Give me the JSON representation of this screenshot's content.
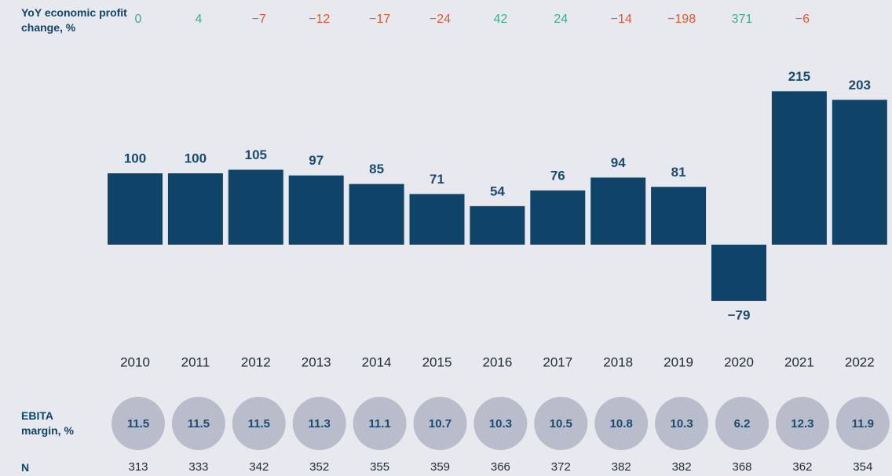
{
  "chart_data": {
    "type": "bar",
    "categories": [
      "2010",
      "2011",
      "2012",
      "2013",
      "2014",
      "2015",
      "2016",
      "2017",
      "2018",
      "2019",
      "2020",
      "2021",
      "2022"
    ],
    "values": [
      100,
      100,
      105,
      97,
      85,
      71,
      54,
      76,
      94,
      81,
      -79,
      215,
      203
    ],
    "value_labels": [
      "100",
      "100",
      "105",
      "97",
      "85",
      "71",
      "54",
      "76",
      "94",
      "81",
      "−79",
      "215",
      "203"
    ],
    "color": "#0f4468",
    "yoy_change": {
      "label": "YoY economic profit change, %",
      "values": [
        0,
        4,
        -7,
        -12,
        -17,
        -24,
        42,
        24,
        -14,
        -198,
        371,
        -6
      ],
      "value_labels": [
        "0",
        "4",
        "−7",
        "−12",
        "−17",
        "−24",
        "42",
        "24",
        "−14",
        "−198",
        "371",
        "−6"
      ],
      "positive_color": "#3fae82",
      "negative_color": "#e4572e"
    },
    "ebita_margin": {
      "label": "EBITA margin, %",
      "values": [
        11.5,
        11.5,
        11.5,
        11.3,
        11.1,
        10.7,
        10.3,
        10.5,
        10.8,
        10.3,
        6.2,
        12.3,
        11.9
      ]
    },
    "n": {
      "label": "N",
      "values": [
        313,
        333,
        342,
        352,
        355,
        359,
        366,
        372,
        382,
        382,
        368,
        362,
        354
      ]
    }
  }
}
